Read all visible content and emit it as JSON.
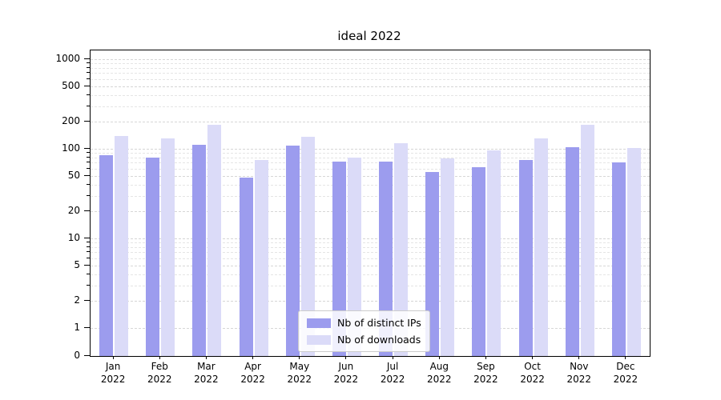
{
  "chart_data": {
    "type": "bar",
    "title": "ideal 2022",
    "categories": [
      "Jan",
      "Feb",
      "Mar",
      "Apr",
      "May",
      "Jun",
      "Jul",
      "Aug",
      "Sep",
      "Oct",
      "Nov",
      "Dec"
    ],
    "year_label": "2022",
    "series": [
      {
        "name": "Nb of distinct IPs",
        "color": "#9c9cee",
        "values": [
          85,
          80,
          110,
          48,
          108,
          72,
          72,
          55,
          62,
          75,
          105,
          70
        ]
      },
      {
        "name": "Nb of downloads",
        "color": "#dbdbf8",
        "values": [
          140,
          130,
          185,
          75,
          135,
          80,
          115,
          78,
          97,
          130,
          185,
          103
        ]
      }
    ],
    "yscale": "symlog",
    "yticks": [
      0,
      1,
      2,
      5,
      10,
      20,
      50,
      100,
      200,
      500,
      1000
    ],
    "minor_yticks": [
      3,
      4,
      6,
      7,
      8,
      9,
      30,
      40,
      60,
      70,
      80,
      90,
      300,
      400,
      600,
      700,
      800,
      900
    ],
    "ylim": [
      0,
      1300
    ],
    "xlabel": "",
    "ylabel": "",
    "grid": "horizontal-dashed",
    "legend_position": "lower center"
  }
}
